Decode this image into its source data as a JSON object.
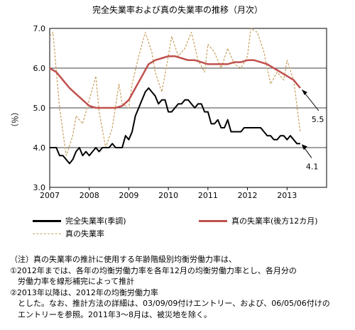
{
  "chart_data": {
    "type": "line",
    "title": "完全失業率および真の失業率の推移（月次）",
    "ylabel": "（％）",
    "ylim": [
      3.0,
      7.0
    ],
    "yticks": [
      "3.0",
      "4.0",
      "5.0",
      "6.0",
      "7.0"
    ],
    "xticks": [
      "2007",
      "2008",
      "2009",
      "2010",
      "2011",
      "2012",
      "2013"
    ],
    "grid": true,
    "legend_position": "bottom",
    "colors": {
      "official": "#000000",
      "true_smoothed": "#c0504d",
      "true_monthly": "#c8a060"
    },
    "annotations": [
      {
        "text": "5.5",
        "x": "2013-05",
        "y": 5.5
      },
      {
        "text": "4.1",
        "x": "2013-05",
        "y": 4.1
      }
    ],
    "series": [
      {
        "name": "完全失業率(季調)",
        "x": [
          "2007-01",
          "2007-02",
          "2007-03",
          "2007-04",
          "2007-05",
          "2007-06",
          "2007-07",
          "2007-08",
          "2007-09",
          "2007-10",
          "2007-11",
          "2007-12",
          "2008-01",
          "2008-02",
          "2008-03",
          "2008-04",
          "2008-05",
          "2008-06",
          "2008-07",
          "2008-08",
          "2008-09",
          "2008-10",
          "2008-11",
          "2008-12",
          "2009-01",
          "2009-02",
          "2009-03",
          "2009-04",
          "2009-05",
          "2009-06",
          "2009-07",
          "2009-08",
          "2009-09",
          "2009-10",
          "2009-11",
          "2009-12",
          "2010-01",
          "2010-02",
          "2010-03",
          "2010-04",
          "2010-05",
          "2010-06",
          "2010-07",
          "2010-08",
          "2010-09",
          "2010-10",
          "2010-11",
          "2010-12",
          "2011-01",
          "2011-02",
          "2011-03",
          "2011-04",
          "2011-05",
          "2011-06",
          "2011-07",
          "2011-08",
          "2011-09",
          "2011-10",
          "2011-11",
          "2011-12",
          "2012-01",
          "2012-02",
          "2012-03",
          "2012-04",
          "2012-05",
          "2012-06",
          "2012-07",
          "2012-08",
          "2012-09",
          "2012-10",
          "2012-11",
          "2012-12",
          "2013-01",
          "2013-02",
          "2013-03",
          "2013-04",
          "2013-05"
        ],
        "values": [
          4.0,
          4.0,
          4.0,
          3.8,
          3.8,
          3.7,
          3.6,
          3.7,
          3.9,
          4.0,
          3.8,
          3.9,
          3.8,
          3.9,
          4.0,
          3.9,
          4.0,
          4.0,
          4.0,
          4.1,
          4.0,
          4.0,
          4.0,
          4.3,
          4.2,
          4.4,
          4.8,
          5.0,
          5.2,
          5.4,
          5.5,
          5.4,
          5.3,
          5.1,
          5.2,
          5.2,
          4.9,
          4.9,
          5.0,
          5.1,
          5.1,
          5.2,
          5.2,
          5.1,
          5.0,
          5.1,
          5.1,
          4.9,
          4.9,
          4.6,
          4.6,
          4.7,
          4.5,
          4.5,
          4.7,
          4.4,
          4.4,
          4.4,
          4.4,
          4.5,
          4.5,
          4.5,
          4.5,
          4.5,
          4.5,
          4.4,
          4.3,
          4.3,
          4.2,
          4.2,
          4.3,
          4.3,
          4.2,
          4.3,
          4.2,
          4.1,
          4.1
        ]
      },
      {
        "name": "真の失業率(後方12カ月)",
        "x": [
          "2007-01",
          "2007-03",
          "2007-05",
          "2007-07",
          "2007-09",
          "2007-11",
          "2008-01",
          "2008-03",
          "2008-05",
          "2008-07",
          "2008-09",
          "2008-11",
          "2009-01",
          "2009-03",
          "2009-05",
          "2009-07",
          "2009-09",
          "2009-11",
          "2010-01",
          "2010-03",
          "2010-05",
          "2010-07",
          "2010-09",
          "2010-11",
          "2011-01",
          "2011-03",
          "2011-05",
          "2011-07",
          "2011-09",
          "2011-11",
          "2012-01",
          "2012-03",
          "2012-05",
          "2012-07",
          "2012-09",
          "2012-11",
          "2013-01",
          "2013-03",
          "2013-05"
        ],
        "values": [
          6.0,
          5.9,
          5.7,
          5.5,
          5.35,
          5.2,
          5.05,
          5.0,
          5.0,
          5.0,
          5.0,
          5.05,
          5.2,
          5.5,
          5.8,
          6.1,
          6.2,
          6.25,
          6.3,
          6.3,
          6.25,
          6.2,
          6.2,
          6.15,
          6.1,
          6.1,
          6.1,
          6.1,
          6.15,
          6.15,
          6.2,
          6.2,
          6.15,
          6.1,
          6.0,
          5.9,
          5.8,
          5.7,
          5.5
        ]
      },
      {
        "name": "真の失業率",
        "x": [
          "2007-01",
          "2007-02",
          "2007-04",
          "2007-06",
          "2007-08",
          "2007-09",
          "2007-11",
          "2008-01",
          "2008-03",
          "2008-04",
          "2008-06",
          "2008-08",
          "2008-10",
          "2008-11",
          "2009-01",
          "2009-02",
          "2009-04",
          "2009-06",
          "2009-08",
          "2009-09",
          "2009-11",
          "2010-01",
          "2010-02",
          "2010-04",
          "2010-06",
          "2010-08",
          "2010-10",
          "2010-12",
          "2011-01",
          "2011-03",
          "2011-05",
          "2011-07",
          "2011-09",
          "2011-11",
          "2012-01",
          "2012-02",
          "2012-04",
          "2012-06",
          "2012-08",
          "2012-10",
          "2012-12",
          "2013-01",
          "2013-03",
          "2013-05"
        ],
        "values": [
          6.8,
          6.9,
          5.0,
          3.8,
          4.3,
          4.8,
          4.6,
          5.2,
          5.8,
          4.9,
          4.0,
          4.5,
          5.6,
          5.1,
          5.0,
          5.6,
          6.3,
          6.9,
          6.4,
          5.9,
          5.4,
          6.3,
          6.8,
          6.3,
          6.5,
          6.9,
          6.2,
          5.9,
          6.6,
          6.4,
          6.0,
          6.5,
          6.1,
          6.0,
          6.3,
          7.0,
          6.9,
          6.4,
          5.6,
          5.9,
          5.7,
          6.2,
          5.7,
          4.4
        ]
      }
    ]
  },
  "legend": {
    "official": "完全失業率(季調)",
    "true_smoothed": "真の失業率(後方12カ月)",
    "true_monthly": "真の失業率"
  },
  "notes": [
    "（注）真の失業率の推計に使用する年齢階級別均衡労働力率は、",
    "①2012年までは、各年の均衡労働力率を各年12月の均衡労働力率とし、各月分の",
    "　労働力率を線形補完によって推計",
    "②2013年以降は、2012年の均衡労働力率",
    "　とした。なお、推計方法の詳細は、03/09/09付けエントリー、および、06/05/06付けの",
    "　エントリーを参照。2011年3～8月は、被災地を除く。"
  ]
}
